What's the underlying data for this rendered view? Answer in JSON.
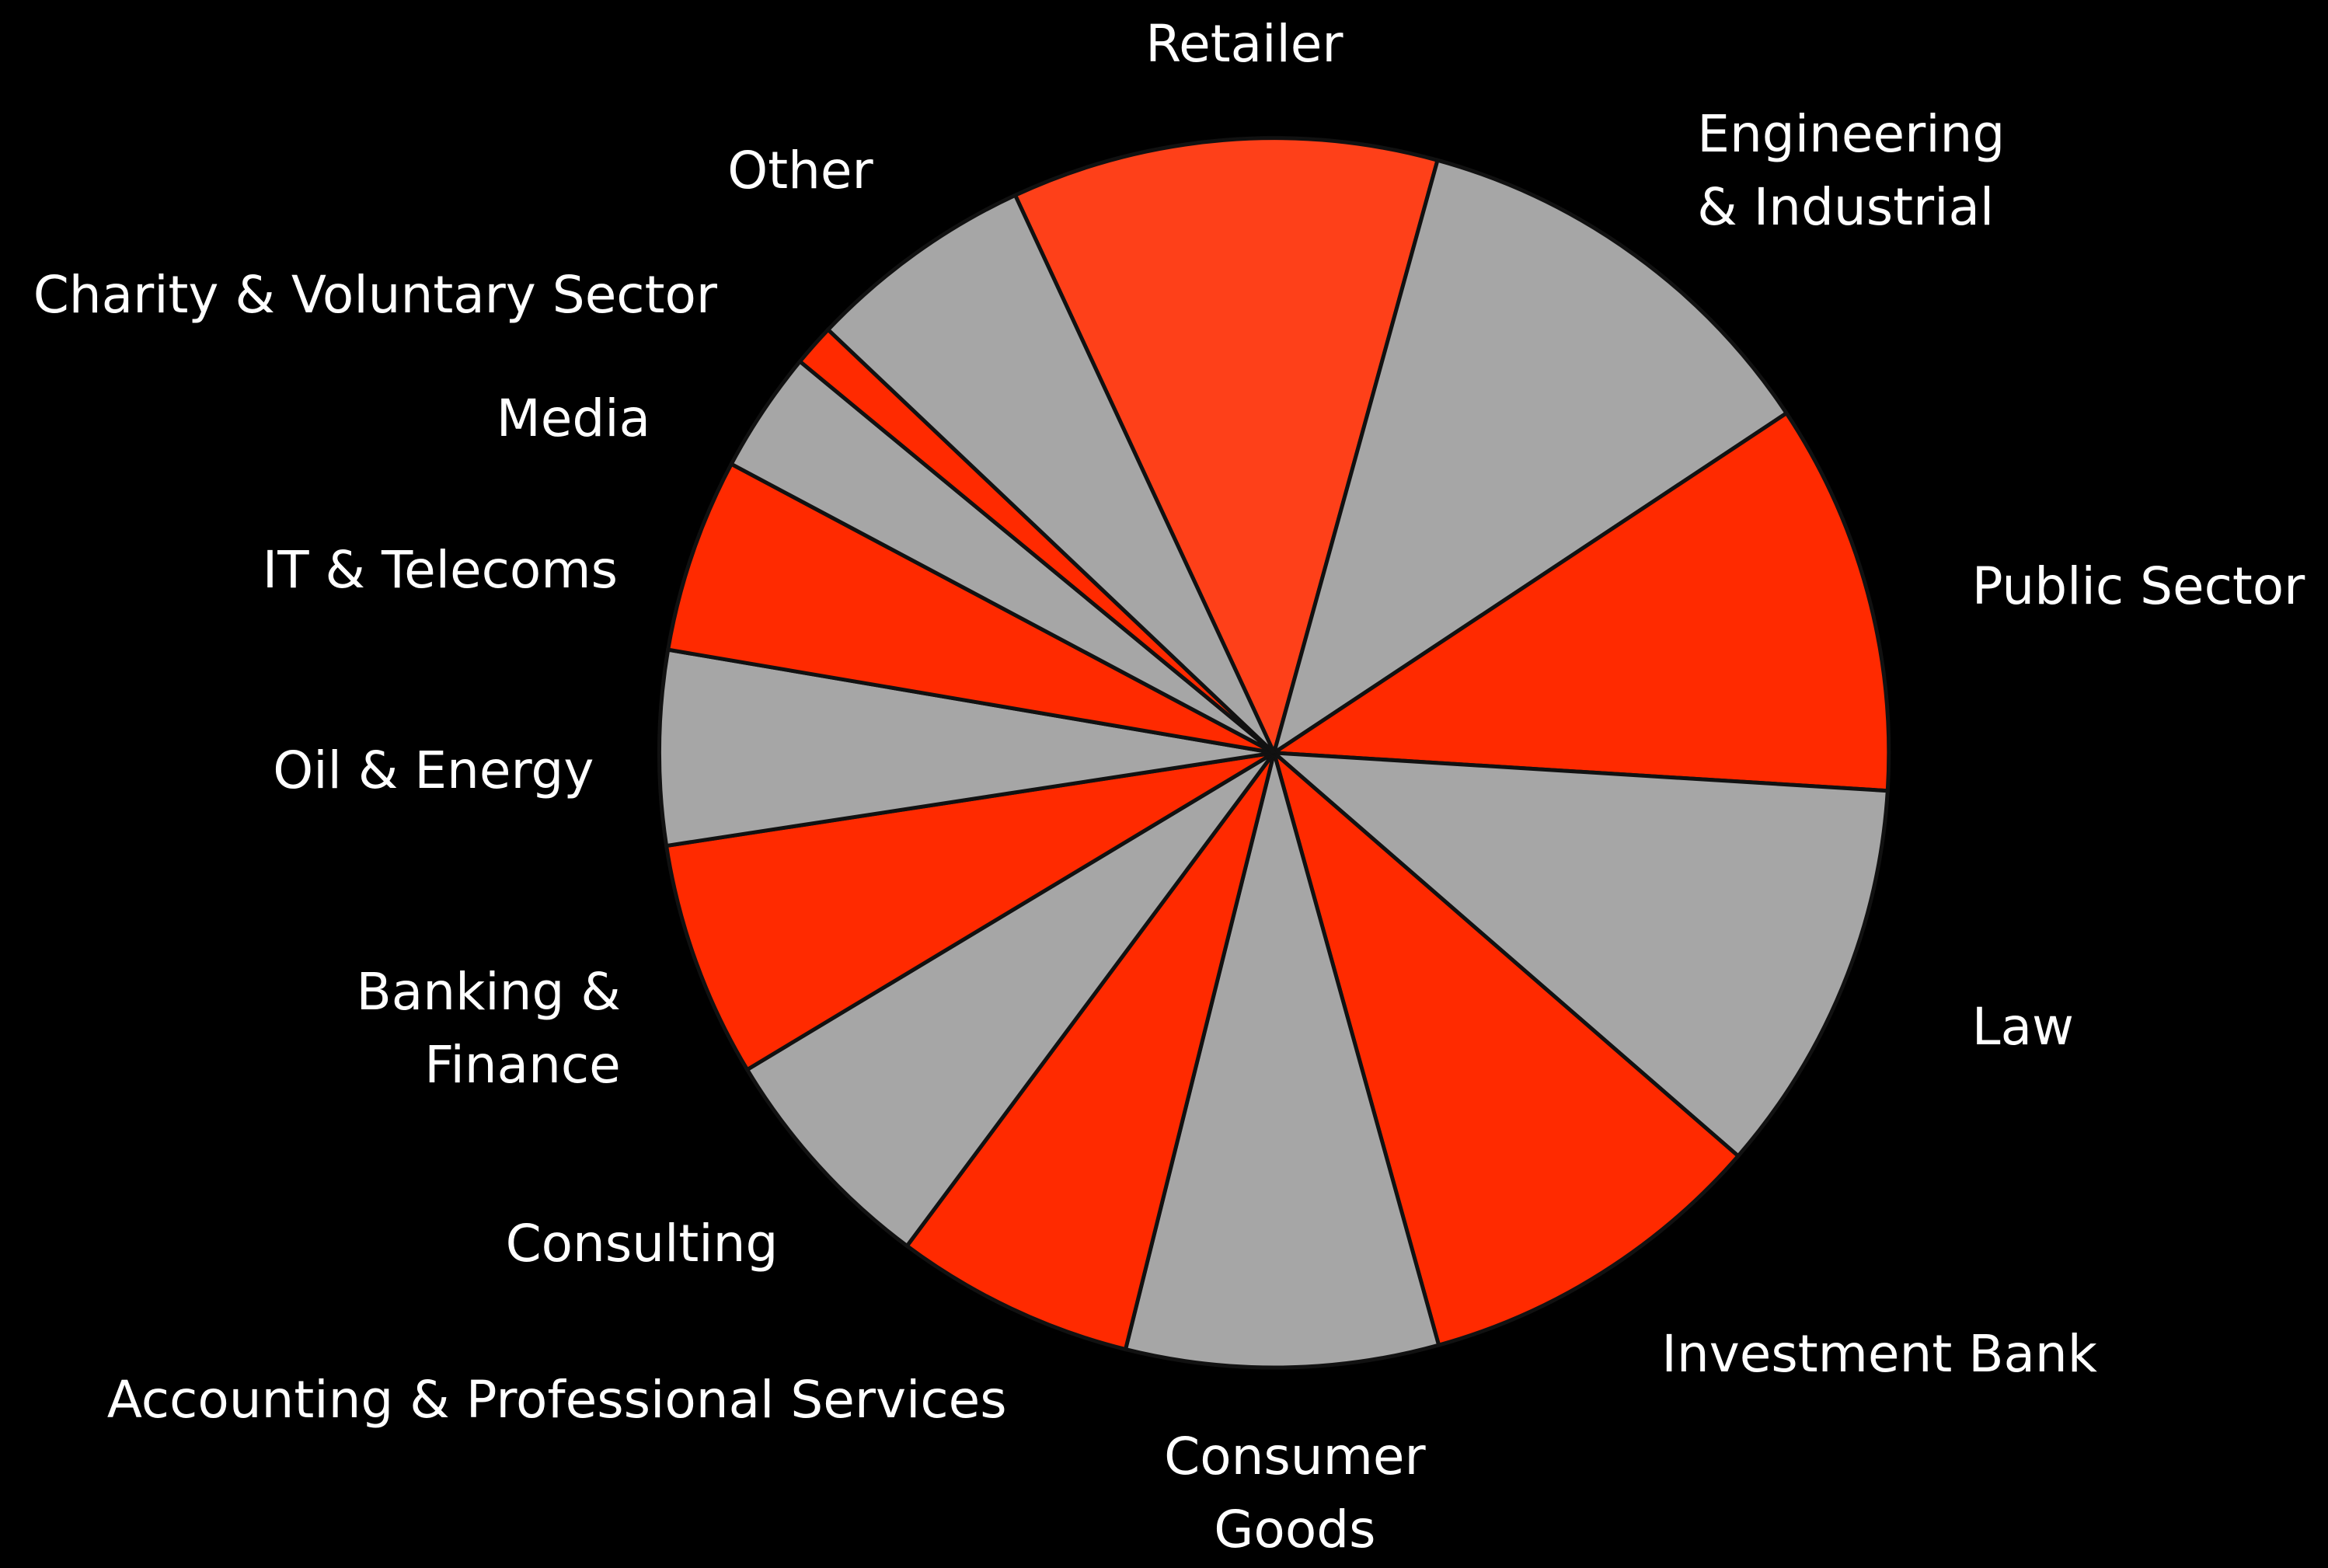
{
  "chart_data": {
    "type": "pie",
    "categories": [
      "Retailer",
      "Engineering\n& Industrial",
      "Public Sector",
      "Law",
      "Investment Bank",
      "Consumer\nGoods",
      "Accounting & Professional Services",
      "Consulting",
      "Banking &\nFinance",
      "Oil & Energy",
      "IT & Telecoms",
      "Media",
      "Charity & Voluntary Sector",
      "Other"
    ],
    "values": [
      11.2,
      11.4,
      10.3,
      10.4,
      9.3,
      8.2,
      6.3,
      6.2,
      6.2,
      5.1,
      5.1,
      3.2,
      1.1,
      6.0
    ],
    "colors": [
      "#fe4019",
      "#a6a6a6",
      "#ff2a00",
      "#a6a6a6",
      "#ff2a00",
      "#a6a6a6",
      "#ff2a00",
      "#a6a6a6",
      "#ff2a00",
      "#a6a6a6",
      "#ff2a00",
      "#a6a6a6",
      "#ff2a00",
      "#a6a6a6"
    ]
  }
}
